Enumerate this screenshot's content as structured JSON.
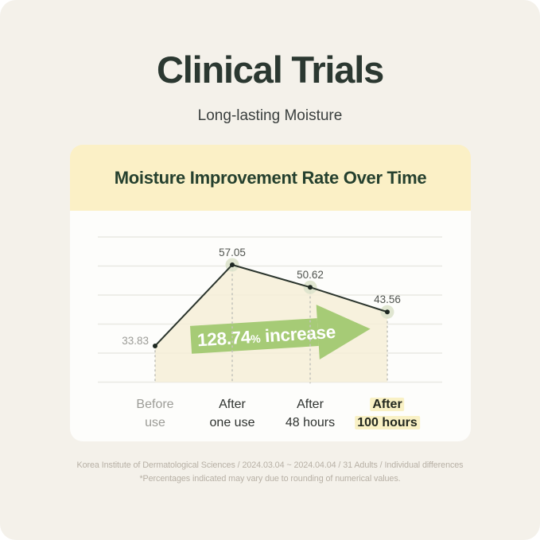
{
  "page": {
    "title": "Clinical Trials",
    "subtitle": "Long-lasting Moisture"
  },
  "card": {
    "header": "Moisture Improvement Rate Over Time"
  },
  "chart_data": {
    "type": "line",
    "title": "Moisture Improvement Rate Over Time",
    "x_tick_labels": [
      [
        "Before",
        "use"
      ],
      [
        "After",
        "one use"
      ],
      [
        "After",
        "48 hours"
      ],
      [
        "After",
        "100 hours"
      ]
    ],
    "values": [
      33.83,
      57.05,
      50.62,
      43.56
    ],
    "annotation": {
      "number": "128.74",
      "percent": "%",
      "word": "increase",
      "full_text": "128.74% increase"
    },
    "muted_category_index": 0,
    "highlighted_category_index": 3,
    "grid": true,
    "legend": false,
    "area_fill": true
  },
  "footnote": {
    "source": "Korea Institute of Dermatological Sciences / 2024.03.04 ~ 2024.04.04 / 31 Adults / Individual differences",
    "disclaimer": "*Percentages indicated may vary due to rounding of numerical values."
  },
  "colors": {
    "background": "#F4F1EA",
    "banner": "#FBF0C6",
    "panel": "#FDFDFB",
    "accent_green": "#A6CB76",
    "area_fill": "#F5EDD6",
    "line": "#2A342C",
    "label_highlight": "#F9F1C5",
    "title_text": "#2B3831",
    "banner_text": "#25402E"
  }
}
